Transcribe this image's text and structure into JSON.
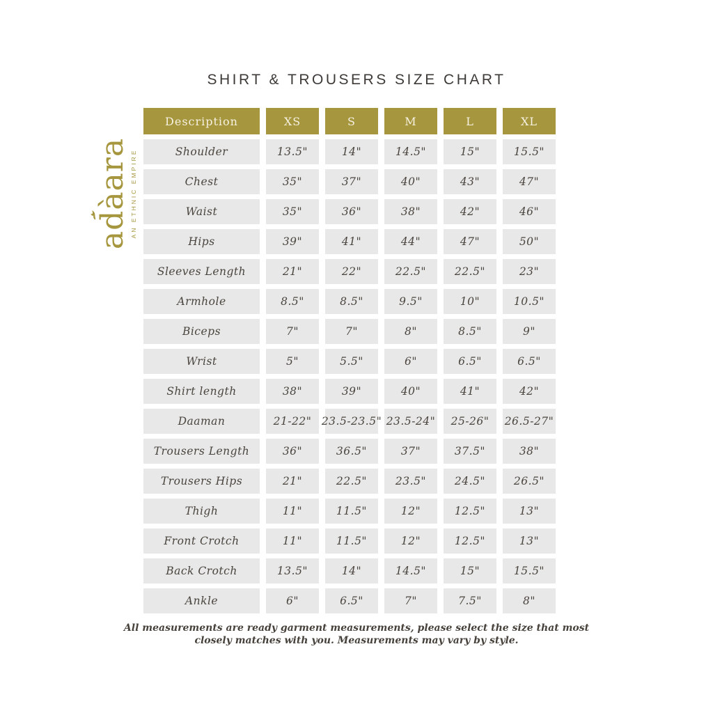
{
  "page": {
    "title": "SHIRT & TROUSERS SIZE CHART",
    "background_color": "#ffffff"
  },
  "logo": {
    "brand": "adàara",
    "tagline": "AN ETHNIC EMPIRE",
    "color": "#a6963e",
    "icon": "bird-icon"
  },
  "colors": {
    "header_bg": "#a6963e",
    "header_text": "#f6f1e1",
    "cell_bg": "#e8e8e8",
    "cell_text": "#4a443e",
    "title_text": "#3e3a37"
  },
  "chart_data": {
    "type": "table",
    "title": "SHIRT & TROUSERS SIZE CHART",
    "columns": [
      "Description",
      "XS",
      "S",
      "M",
      "L",
      "XL"
    ],
    "rows": [
      {
        "label": "Shoulder",
        "values": [
          "13.5\"",
          "14\"",
          "14.5\"",
          "15\"",
          "15.5\""
        ]
      },
      {
        "label": "Chest",
        "values": [
          "35\"",
          "37\"",
          "40\"",
          "43\"",
          "47\""
        ]
      },
      {
        "label": "Waist",
        "values": [
          "35\"",
          "36\"",
          "38\"",
          "42\"",
          "46\""
        ]
      },
      {
        "label": "Hips",
        "values": [
          "39\"",
          "41\"",
          "44\"",
          "47\"",
          "50\""
        ]
      },
      {
        "label": "Sleeves Length",
        "values": [
          "21\"",
          "22\"",
          "22.5\"",
          "22.5\"",
          "23\""
        ]
      },
      {
        "label": "Armhole",
        "values": [
          "8.5\"",
          "8.5\"",
          "9.5\"",
          "10\"",
          "10.5\""
        ]
      },
      {
        "label": "Biceps",
        "values": [
          "7\"",
          "7\"",
          "8\"",
          "8.5\"",
          "9\""
        ]
      },
      {
        "label": "Wrist",
        "values": [
          "5\"",
          "5.5\"",
          "6\"",
          "6.5\"",
          "6.5\""
        ]
      },
      {
        "label": "Shirt length",
        "values": [
          "38\"",
          "39\"",
          "40\"",
          "41\"",
          "42\""
        ]
      },
      {
        "label": "Daaman",
        "values": [
          "21-22\"",
          "23.5-23.5\"",
          "23.5-24\"",
          "25-26\"",
          "26.5-27\""
        ]
      },
      {
        "label": "Trousers Length",
        "values": [
          "36\"",
          "36.5\"",
          "37\"",
          "37.5\"",
          "38\""
        ]
      },
      {
        "label": "Trousers Hips",
        "values": [
          "21\"",
          "22.5\"",
          "23.5\"",
          "24.5\"",
          "26.5\""
        ]
      },
      {
        "label": "Thigh",
        "values": [
          "11\"",
          "11.5\"",
          "12\"",
          "12.5\"",
          "13\""
        ]
      },
      {
        "label": "Front Crotch",
        "values": [
          "11\"",
          "11.5\"",
          "12\"",
          "12.5\"",
          "13\""
        ]
      },
      {
        "label": "Back Crotch",
        "values": [
          "13.5\"",
          "14\"",
          "14.5\"",
          "15\"",
          "15.5\""
        ]
      },
      {
        "label": "Ankle",
        "values": [
          "6\"",
          "6.5\"",
          "7\"",
          "7.5\"",
          "8\""
        ]
      }
    ]
  },
  "footer": {
    "line1": "All measurements are ready garment measurements, please select the size that most",
    "line2": "closely matches with you. Measurements may vary by style."
  }
}
